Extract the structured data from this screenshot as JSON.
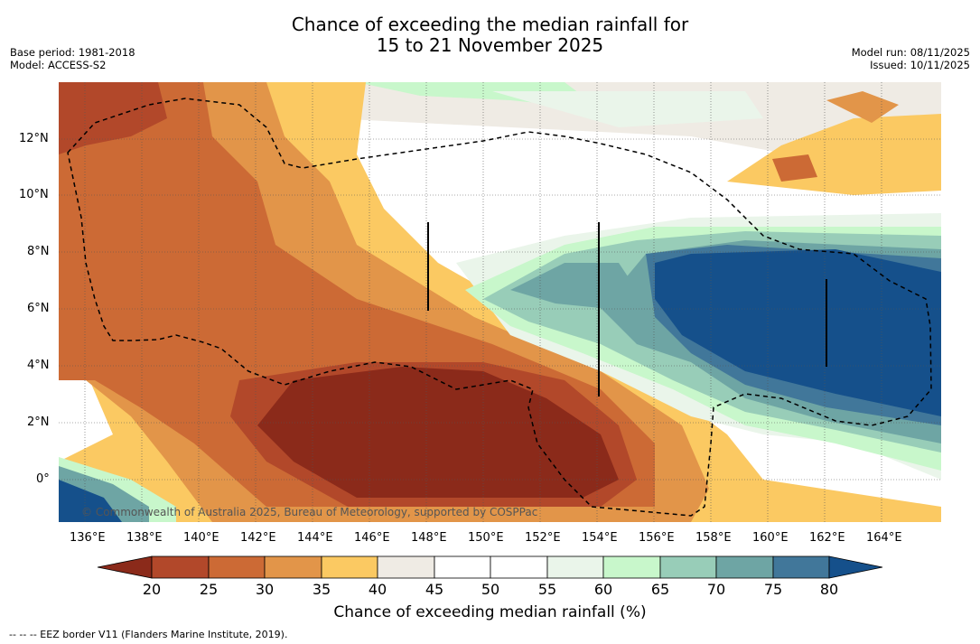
{
  "title": {
    "line1": "Chance of exceeding the median rainfall for",
    "line2": "15 to 21 November 2025"
  },
  "meta": {
    "base_period": "Base period: 1981-2018",
    "model": "Model: ACCESS-S2",
    "model_run": "Model run: 08/11/2025",
    "issued": "Issued: 10/11/2025"
  },
  "map": {
    "lon_labels": [
      "136°E",
      "138°E",
      "140°E",
      "142°E",
      "144°E",
      "146°E",
      "148°E",
      "150°E",
      "152°E",
      "154°E",
      "156°E",
      "158°E",
      "160°E",
      "162°E",
      "164°E"
    ],
    "lat_labels": [
      "12°N",
      "10°N",
      "8°N",
      "6°N",
      "4°N",
      "2°N",
      "0°"
    ],
    "lon_range": [
      135,
      166
    ],
    "lat_range": [
      -1.5,
      14
    ],
    "copyright": "© Commonwealth of Australia 2025, Bureau of Meteorology, supported by COSPPac"
  },
  "colorbar": {
    "ticks": [
      "20",
      "25",
      "30",
      "35",
      "40",
      "45",
      "50",
      "55",
      "60",
      "65",
      "70",
      "75",
      "80"
    ],
    "title": "Chance of exceeding median rainfall (%)",
    "colors": [
      "#8b2a1a",
      "#b2482a",
      "#cc6a35",
      "#e29549",
      "#fbc962",
      "#efebe4",
      "#ffffff",
      "#ffffff",
      "#eaf5ea",
      "#c8f7cb",
      "#98cdb8",
      "#6ea5a4",
      "#41779a",
      "#15508b"
    ]
  },
  "legend": {
    "eez_text": "--  --  -- EEZ border V11 (Flanders Marine Institute, 2019)."
  }
}
